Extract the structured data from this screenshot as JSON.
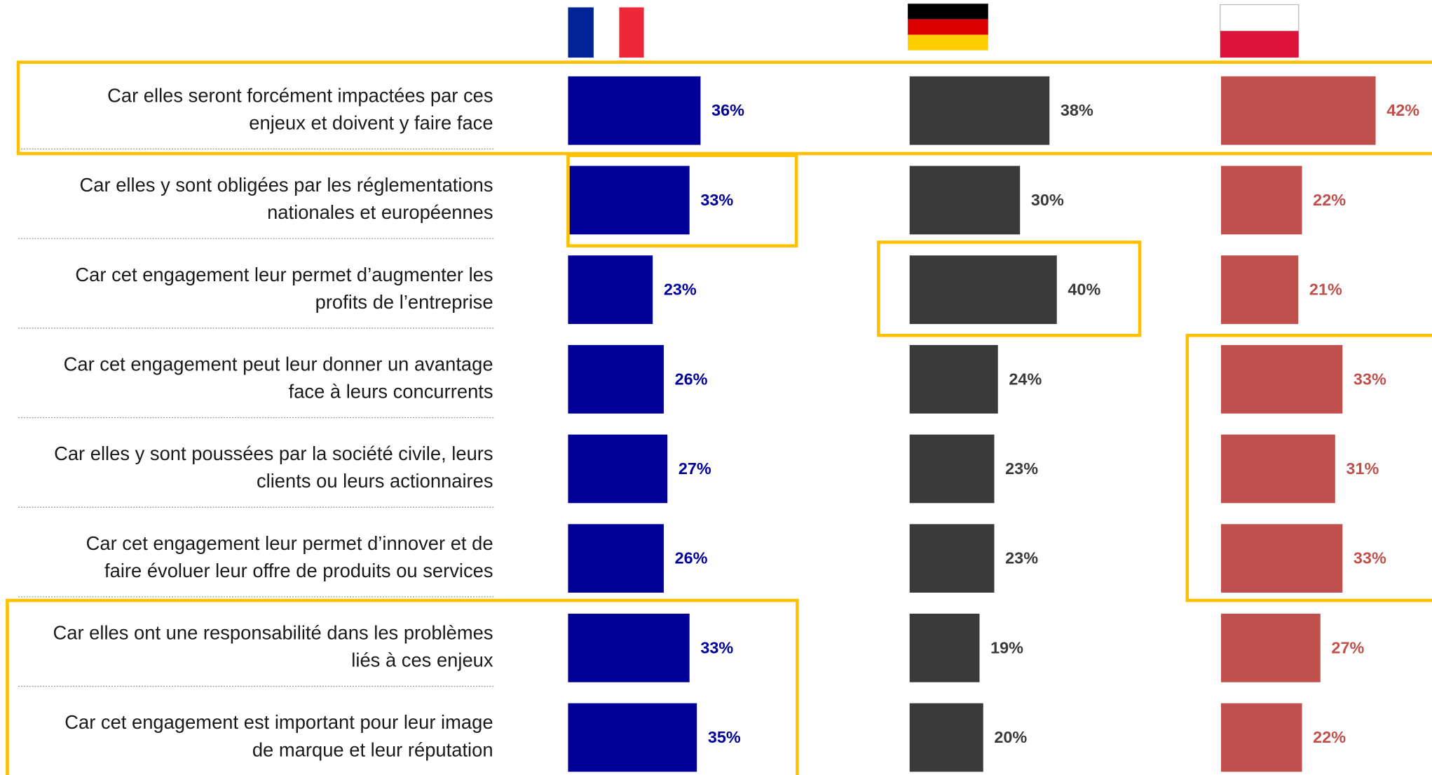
{
  "chart_data": {
    "type": "bar",
    "categories": [
      [
        "Car elles seront forcément impactées par ces",
        "enjeux et doivent y faire face"
      ],
      [
        "Car elles y sont obligées par les réglementations",
        "nationales et européennes"
      ],
      [
        "Car cet engagement leur permet d’augmenter les",
        "profits de l’entreprise"
      ],
      [
        "Car cet engagement peut leur donner un avantage",
        "face à leurs concurrents"
      ],
      [
        "Car elles y sont poussées par la société civile, leurs",
        "clients ou leurs actionnaires"
      ],
      [
        "Car cet engagement leur permet d’innover et de",
        "faire évoluer leur offre de produits ou services"
      ],
      [
        "Car elles ont une responsabilité dans les problèmes",
        "liés à ces enjeux"
      ],
      [
        "Car cet engagement est important pour leur image",
        "de marque et leur réputation"
      ]
    ],
    "series": [
      {
        "color": "#000099",
        "values": [
          36,
          33,
          23,
          26,
          27,
          26,
          33,
          35
        ],
        "value_labels": [
          "36%",
          "33%",
          "23%",
          "26%",
          "27%",
          "26%",
          "33%",
          "35%"
        ]
      },
      {
        "color": "#3a3a3a",
        "values": [
          38,
          30,
          40,
          24,
          23,
          23,
          19,
          20
        ],
        "value_labels": [
          "38%",
          "30%",
          "40%",
          "24%",
          "23%",
          "23%",
          "19%",
          "20%"
        ]
      },
      {
        "color": "#c0504d",
        "values": [
          42,
          22,
          21,
          33,
          31,
          33,
          27,
          22
        ],
        "value_labels": [
          "42%",
          "22%",
          "21%",
          "33%",
          "31%",
          "33%",
          "27%",
          "22%"
        ]
      }
    ]
  }
}
